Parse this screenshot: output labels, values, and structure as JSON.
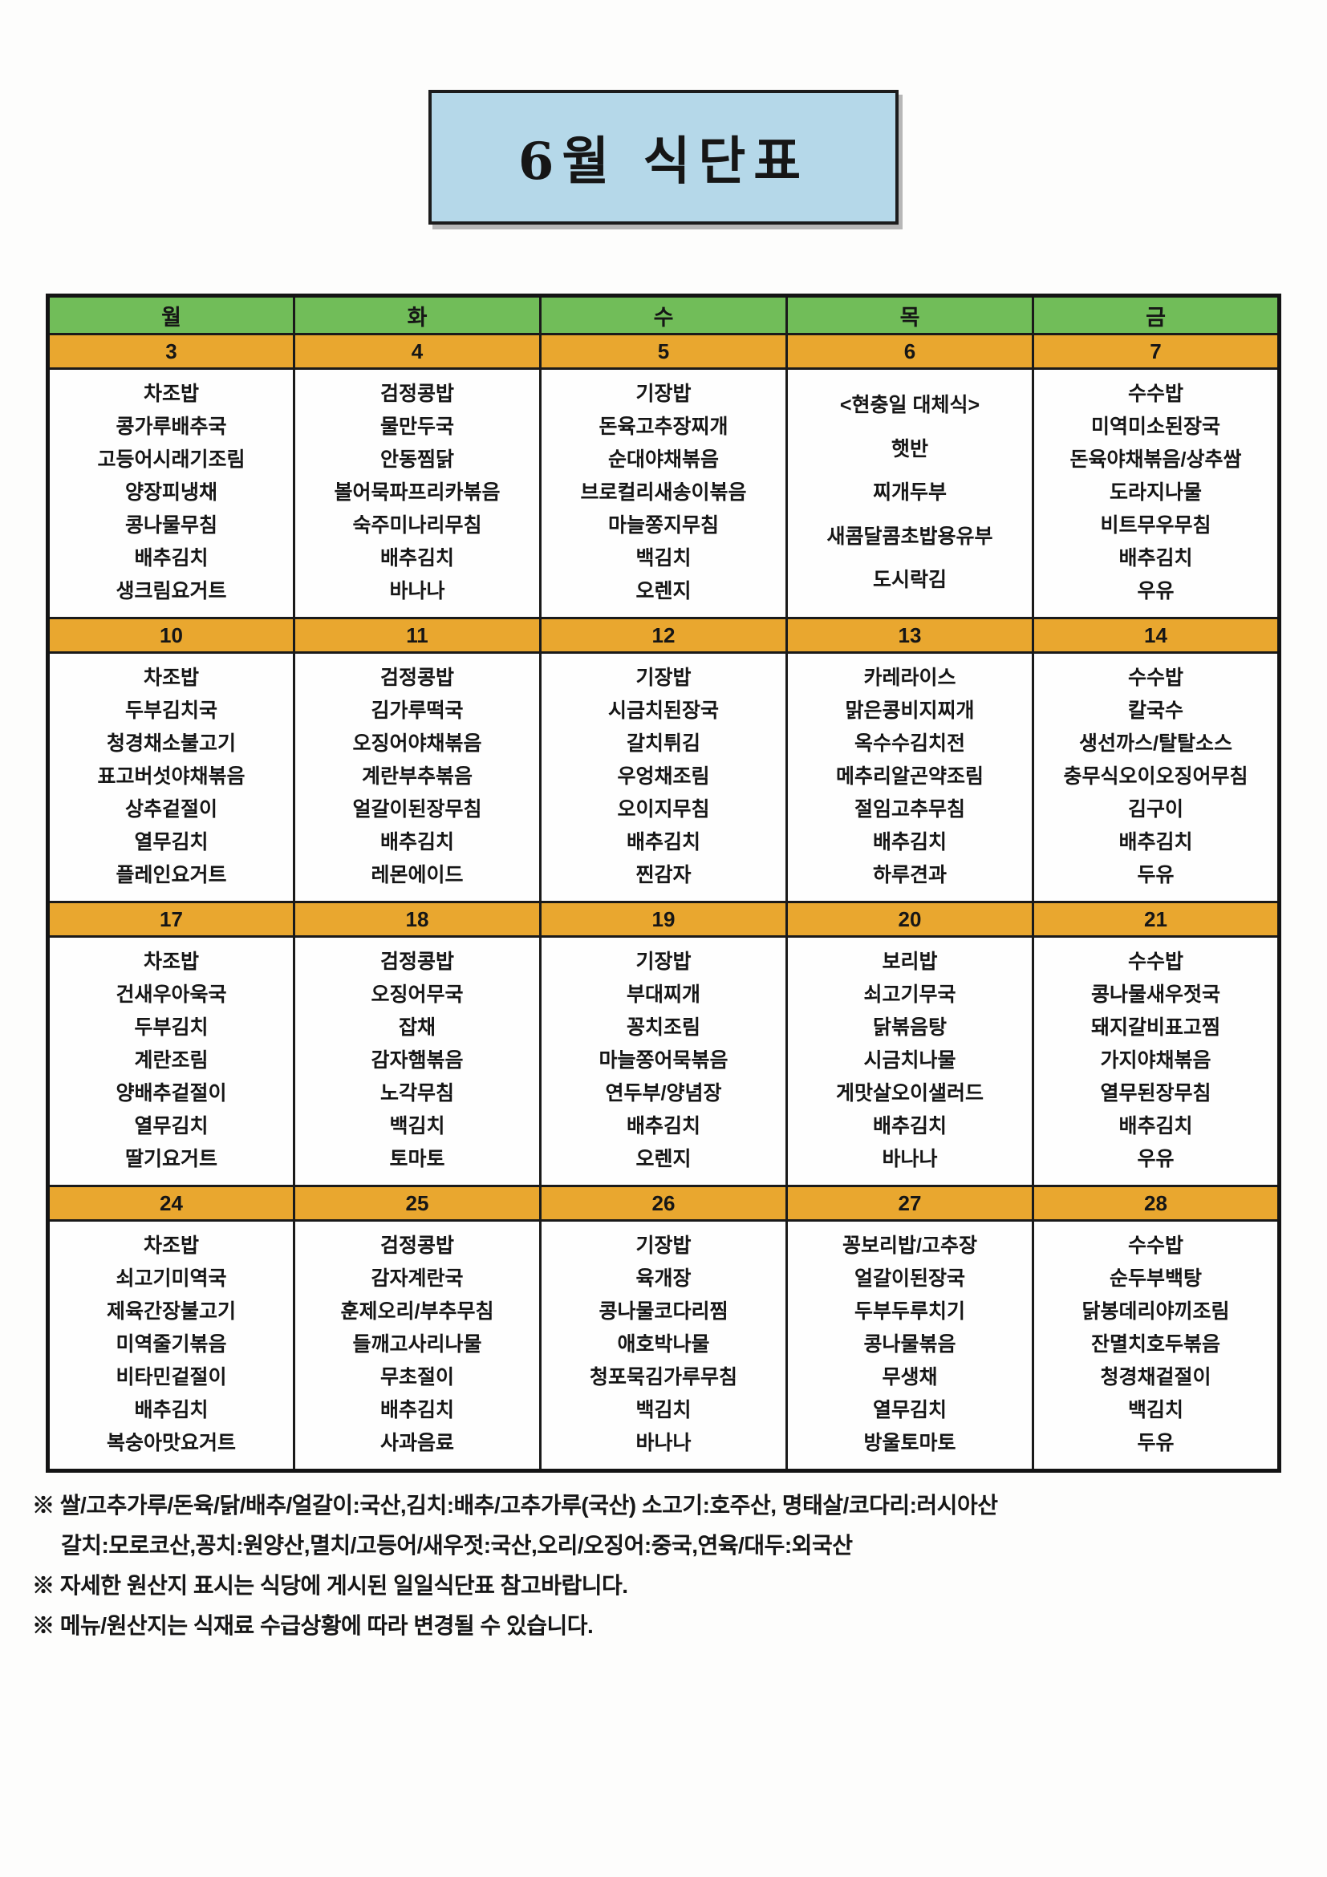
{
  "page": {
    "title": "6월 식단표"
  },
  "colors": {
    "title_box_blue": "#b5d8e9",
    "header_green": "#71bd59",
    "date_orange": "#e9a72f",
    "border_black": "#1a1a1a"
  },
  "table": {
    "day_headers": [
      "월",
      "화",
      "수",
      "목",
      "금"
    ],
    "weeks": [
      {
        "dates": [
          "3",
          "4",
          "5",
          "6",
          "7"
        ],
        "menus": [
          [
            "차조밥",
            "콩가루배추국",
            "고등어시래기조림",
            "양장피냉채",
            "콩나물무침",
            "배추김치",
            "생크림요거트"
          ],
          [
            "검정콩밥",
            "물만두국",
            "안동찜닭",
            "볼어묵파프리카볶음",
            "숙주미나리무침",
            "배추김치",
            "바나나"
          ],
          [
            "기장밥",
            "돈육고추장찌개",
            "순대야채볶음",
            "브로컬리새송이볶음",
            "마늘쫑지무침",
            "백김치",
            "오렌지"
          ],
          [
            "<현충일 대체식>",
            "햇반",
            "찌개두부",
            "새콤달콤초밥용유부",
            "도시락김"
          ],
          [
            "수수밥",
            "미역미소된장국",
            "돈육야채볶음/상추쌈",
            "도라지나물",
            "비트무우무침",
            "배추김치",
            "우유"
          ]
        ]
      },
      {
        "dates": [
          "10",
          "11",
          "12",
          "13",
          "14"
        ],
        "menus": [
          [
            "차조밥",
            "두부김치국",
            "청경채소불고기",
            "표고버섯야채볶음",
            "상추겉절이",
            "열무김치",
            "플레인요거트"
          ],
          [
            "검정콩밥",
            "김가루떡국",
            "오징어야채볶음",
            "계란부추볶음",
            "얼갈이된장무침",
            "배추김치",
            "레몬에이드"
          ],
          [
            "기장밥",
            "시금치된장국",
            "갈치튀김",
            "우엉채조림",
            "오이지무침",
            "배추김치",
            "찐감자"
          ],
          [
            "카레라이스",
            "맑은콩비지찌개",
            "옥수수김치전",
            "메추리알곤약조림",
            "절임고추무침",
            "배추김치",
            "하루견과"
          ],
          [
            "수수밥",
            "칼국수",
            "생선까스/탈탈소스",
            "충무식오이오징어무침",
            "김구이",
            "배추김치",
            "두유"
          ]
        ]
      },
      {
        "dates": [
          "17",
          "18",
          "19",
          "20",
          "21"
        ],
        "menus": [
          [
            "차조밥",
            "건새우아욱국",
            "두부김치",
            "계란조림",
            "양배추겉절이",
            "열무김치",
            "딸기요거트"
          ],
          [
            "검정콩밥",
            "오징어무국",
            "잡채",
            "감자햄볶음",
            "노각무침",
            "백김치",
            "토마토"
          ],
          [
            "기장밥",
            "부대찌개",
            "꽁치조림",
            "마늘쫑어묵볶음",
            "연두부/양념장",
            "배추김치",
            "오렌지"
          ],
          [
            "보리밥",
            "쇠고기무국",
            "닭볶음탕",
            "시금치나물",
            "게맛살오이샐러드",
            "배추김치",
            "바나나"
          ],
          [
            "수수밥",
            "콩나물새우젓국",
            "돼지갈비표고찜",
            "가지야채볶음",
            "열무된장무침",
            "배추김치",
            "우유"
          ]
        ]
      },
      {
        "dates": [
          "24",
          "25",
          "26",
          "27",
          "28"
        ],
        "menus": [
          [
            "차조밥",
            "쇠고기미역국",
            "제육간장불고기",
            "미역줄기볶음",
            "비타민겉절이",
            "배추김치",
            "복숭아맛요거트"
          ],
          [
            "검정콩밥",
            "감자계란국",
            "훈제오리/부추무침",
            "들깨고사리나물",
            "무초절이",
            "배추김치",
            "사과음료"
          ],
          [
            "기장밥",
            "육개장",
            "콩나물코다리찜",
            "애호박나물",
            "청포묵김가루무침",
            "백김치",
            "바나나"
          ],
          [
            "꽁보리밥/고추장",
            "얼갈이된장국",
            "두부두루치기",
            "콩나물볶음",
            "무생채",
            "열무김치",
            "방울토마토"
          ],
          [
            "수수밥",
            "순두부백탕",
            "닭봉데리야끼조림",
            "잔멸치호두볶음",
            "청경채겉절이",
            "백김치",
            "두유"
          ]
        ]
      }
    ]
  },
  "footnotes": [
    "※ 쌀/고추가루/돈육/닭/배추/얼갈이:국산,김치:배추/고추가루(국산) 소고기:호주산, 명태살/코다리:러시아산",
    "갈치:모로코산,꽁치:원양산,멸치/고등어/새우젓:국산,오리/오징어:중국,연육/대두:외국산",
    "※ 자세한 원산지 표시는 식당에 게시된 일일식단표 참고바랍니다.",
    "※ 메뉴/원산지는 식재료 수급상황에 따라 변경될 수 있습니다."
  ]
}
